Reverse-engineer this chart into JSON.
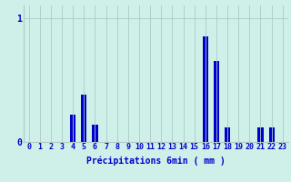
{
  "hours": [
    0,
    1,
    2,
    3,
    4,
    5,
    6,
    7,
    8,
    9,
    10,
    11,
    12,
    13,
    14,
    15,
    16,
    17,
    18,
    19,
    20,
    21,
    22,
    23
  ],
  "values": [
    0,
    0,
    0,
    0,
    0.22,
    0.38,
    0.14,
    0,
    0,
    0,
    0,
    0,
    0,
    0,
    0,
    0,
    0.85,
    0.65,
    0.12,
    0,
    0,
    0.12,
    0.12,
    0
  ],
  "bar_color": "#0000cc",
  "bg_color": "#cef0e8",
  "grid_color": "#b0c8c8",
  "xlabel": "Précipitations 6min ( mm )",
  "ytick_label": [
    "0",
    "1"
  ],
  "ytick_vals": [
    0,
    1
  ],
  "ylim": [
    0,
    1.1
  ],
  "xlim": [
    -0.5,
    23.5
  ],
  "xlabel_fontsize": 7,
  "tick_fontsize": 6,
  "bar_width": 0.5
}
